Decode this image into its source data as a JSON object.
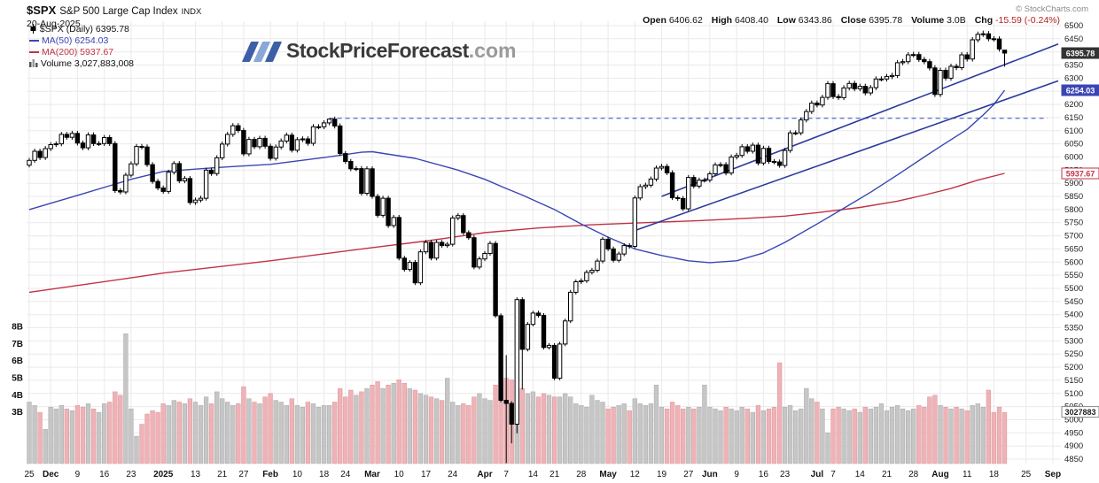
{
  "header": {
    "symbol": "$SPX",
    "name": "S&P 500 Large Cap Index",
    "exchange": "INDX",
    "date": "20-Aug-2025",
    "copyright": "© StockCharts.com"
  },
  "quote": {
    "fields": [
      {
        "label": "Open",
        "value": "6406.62"
      },
      {
        "label": "High",
        "value": "6408.40"
      },
      {
        "label": "Low",
        "value": "6343.86"
      },
      {
        "label": "Close",
        "value": "6395.78"
      },
      {
        "label": "Volume",
        "value": "3.0B"
      },
      {
        "label": "Chg",
        "value": "-15.59 (-0.24%)"
      }
    ]
  },
  "watermark": {
    "slashes": "///",
    "brand": "StockPriceForecast",
    "tld": ".com"
  },
  "legend": {
    "items": [
      {
        "label": "$SPX (Daily) 6395.78",
        "color": "#000000"
      },
      {
        "label": "MA(50) 6254.03",
        "color": "#3a46b4"
      },
      {
        "label": "MA(200) 5937.67",
        "color": "#c03344"
      },
      {
        "label": "Volume 3,027,883,008",
        "color": "#222222"
      }
    ]
  },
  "chart_data": {
    "type": "candlestick+volume",
    "symbol": "$SPX",
    "timeframe": "Daily",
    "ylim": [
      4850,
      6500
    ],
    "ytick_step": 50,
    "volume_ticks": [
      3,
      4,
      5,
      6,
      7,
      8
    ],
    "x_total_slots": 193,
    "first_open": 5969,
    "last_ohlc": {
      "open": 6406.62,
      "high": 6408.4,
      "low": 6343.86,
      "close": 6395.78
    },
    "dates": [
      "2024-11-25",
      "2024-11-26",
      "2024-11-27",
      "2024-11-29",
      "2024-12-02",
      "2024-12-03",
      "2024-12-04",
      "2024-12-05",
      "2024-12-06",
      "2024-12-09",
      "2024-12-10",
      "2024-12-11",
      "2024-12-12",
      "2024-12-13",
      "2024-12-16",
      "2024-12-17",
      "2024-12-18",
      "2024-12-19",
      "2024-12-20",
      "2024-12-23",
      "2024-12-24",
      "2024-12-26",
      "2024-12-27",
      "2024-12-30",
      "2024-12-31",
      "2025-01-02",
      "2025-01-03",
      "2025-01-06",
      "2025-01-07",
      "2025-01-08",
      "2025-01-10",
      "2025-01-13",
      "2025-01-14",
      "2025-01-15",
      "2025-01-16",
      "2025-01-17",
      "2025-01-21",
      "2025-01-22",
      "2025-01-23",
      "2025-01-24",
      "2025-01-27",
      "2025-01-28",
      "2025-01-29",
      "2025-01-30",
      "2025-01-31",
      "2025-02-03",
      "2025-02-04",
      "2025-02-05",
      "2025-02-06",
      "2025-02-07",
      "2025-02-10",
      "2025-02-11",
      "2025-02-12",
      "2025-02-13",
      "2025-02-14",
      "2025-02-18",
      "2025-02-19",
      "2025-02-20",
      "2025-02-21",
      "2025-02-24",
      "2025-02-25",
      "2025-02-26",
      "2025-02-27",
      "2025-02-28",
      "2025-03-03",
      "2025-03-04",
      "2025-03-05",
      "2025-03-06",
      "2025-03-07",
      "2025-03-10",
      "2025-03-11",
      "2025-03-12",
      "2025-03-13",
      "2025-03-14",
      "2025-03-17",
      "2025-03-18",
      "2025-03-19",
      "2025-03-20",
      "2025-03-21",
      "2025-03-24",
      "2025-03-25",
      "2025-03-26",
      "2025-03-27",
      "2025-03-28",
      "2025-03-31",
      "2025-04-01",
      "2025-04-02",
      "2025-04-03",
      "2025-04-04",
      "2025-04-07",
      "2025-04-08",
      "2025-04-09",
      "2025-04-10",
      "2025-04-11",
      "2025-04-14",
      "2025-04-15",
      "2025-04-16",
      "2025-04-17",
      "2025-04-21",
      "2025-04-22",
      "2025-04-23",
      "2025-04-24",
      "2025-04-25",
      "2025-04-28",
      "2025-04-29",
      "2025-04-30",
      "2025-05-01",
      "2025-05-02",
      "2025-05-05",
      "2025-05-06",
      "2025-05-07",
      "2025-05-08",
      "2025-05-09",
      "2025-05-12",
      "2025-05-13",
      "2025-05-14",
      "2025-05-15",
      "2025-05-16",
      "2025-05-19",
      "2025-05-20",
      "2025-05-21",
      "2025-05-22",
      "2025-05-23",
      "2025-05-27",
      "2025-05-28",
      "2025-05-29",
      "2025-05-30",
      "2025-06-02",
      "2025-06-03",
      "2025-06-04",
      "2025-06-05",
      "2025-06-06",
      "2025-06-09",
      "2025-06-10",
      "2025-06-11",
      "2025-06-12",
      "2025-06-13",
      "2025-06-16",
      "2025-06-17",
      "2025-06-18",
      "2025-06-20",
      "2025-06-23",
      "2025-06-24",
      "2025-06-25",
      "2025-06-26",
      "2025-06-27",
      "2025-06-30",
      "2025-07-01",
      "2025-07-02",
      "2025-07-03",
      "2025-07-07",
      "2025-07-08",
      "2025-07-09",
      "2025-07-10",
      "2025-07-11",
      "2025-07-14",
      "2025-07-15",
      "2025-07-16",
      "2025-07-17",
      "2025-07-18",
      "2025-07-21",
      "2025-07-22",
      "2025-07-23",
      "2025-07-24",
      "2025-07-25",
      "2025-07-28",
      "2025-07-29",
      "2025-07-30",
      "2025-07-31",
      "2025-08-01",
      "2025-08-04",
      "2025-08-05",
      "2025-08-06",
      "2025-08-07",
      "2025-08-08",
      "2025-08-11",
      "2025-08-12",
      "2025-08-13",
      "2025-08-14",
      "2025-08-15",
      "2025-08-18",
      "2025-08-19",
      "2025-08-20"
    ],
    "close": [
      5987,
      6022,
      5998,
      6032,
      6047,
      6050,
      6086,
      6075,
      6090,
      6053,
      6035,
      6084,
      6051,
      6051,
      6074,
      6051,
      5872,
      5867,
      5931,
      5974,
      6040,
      6038,
      5971,
      5907,
      5882,
      5869,
      5942,
      5975,
      5909,
      5918,
      5827,
      5836,
      5843,
      5950,
      5937,
      5997,
      6049,
      6086,
      6119,
      6101,
      6012,
      6067,
      6039,
      6071,
      6041,
      5995,
      6038,
      6061,
      6083,
      6026,
      6066,
      6069,
      6052,
      6115,
      6115,
      6130,
      6144,
      6118,
      6013,
      5983,
      5955,
      5956,
      5862,
      5955,
      5850,
      5778,
      5843,
      5739,
      5770,
      5615,
      5572,
      5599,
      5521,
      5639,
      5675,
      5615,
      5675,
      5663,
      5668,
      5768,
      5777,
      5712,
      5693,
      5581,
      5612,
      5633,
      5671,
      5396,
      5074,
      5062,
      4983,
      5457,
      5268,
      5363,
      5406,
      5397,
      5275,
      5283,
      5158,
      5288,
      5376,
      5485,
      5525,
      5529,
      5561,
      5569,
      5604,
      5687,
      5650,
      5607,
      5631,
      5663,
      5660,
      5844,
      5887,
      5893,
      5916,
      5958,
      5964,
      5940,
      5845,
      5842,
      5803,
      5922,
      5889,
      5912,
      5912,
      5936,
      5970,
      5971,
      5939,
      6000,
      6006,
      6039,
      6022,
      6045,
      5977,
      6033,
      5983,
      5981,
      5968,
      6025,
      6092,
      6092,
      6141,
      6173,
      6205,
      6198,
      6227,
      6279,
      6230,
      6226,
      6263,
      6280,
      6260,
      6269,
      6244,
      6264,
      6297,
      6297,
      6306,
      6310,
      6359,
      6363,
      6389,
      6390,
      6371,
      6363,
      6339,
      6238,
      6330,
      6300,
      6345,
      6340,
      6389,
      6373,
      6446,
      6467,
      6469,
      6450,
      6449,
      6411,
      6395.78
    ],
    "volume_b": [
      3.6,
      3.4,
      3.0,
      2.0,
      3.3,
      3.2,
      3.4,
      3.2,
      3.1,
      3.4,
      3.3,
      3.5,
      3.2,
      3.0,
      3.5,
      3.6,
      4.2,
      4.0,
      7.6,
      3.2,
      1.6,
      2.3,
      2.9,
      3.1,
      3.0,
      3.5,
      3.4,
      3.7,
      3.6,
      3.5,
      3.8,
      3.6,
      3.4,
      3.9,
      3.5,
      4.2,
      3.8,
      3.6,
      3.4,
      3.5,
      4.5,
      3.8,
      3.6,
      3.5,
      3.9,
      4.1,
      3.7,
      3.6,
      3.4,
      3.8,
      3.4,
      3.3,
      3.6,
      3.5,
      3.3,
      3.4,
      3.4,
      3.6,
      4.4,
      3.9,
      4.3,
      4.0,
      4.2,
      4.4,
      4.6,
      4.8,
      4.4,
      4.6,
      4.7,
      4.9,
      4.7,
      4.4,
      4.3,
      4.1,
      4.0,
      3.9,
      3.8,
      3.7,
      5.0,
      3.6,
      3.4,
      3.5,
      3.4,
      3.9,
      4.1,
      3.8,
      3.7,
      4.6,
      4.8,
      5.0,
      4.9,
      4.9,
      4.4,
      4.1,
      4.2,
      3.9,
      4.1,
      4.0,
      3.9,
      3.9,
      4.1,
      3.9,
      3.5,
      3.4,
      3.3,
      4.0,
      3.7,
      3.6,
      3.2,
      3.3,
      3.4,
      3.5,
      3.1,
      3.8,
      3.5,
      3.4,
      3.5,
      4.6,
      3.3,
      3.2,
      3.6,
      3.4,
      3.2,
      3.3,
      3.2,
      3.3,
      4.6,
      3.3,
      3.2,
      3.1,
      3.3,
      3.2,
      3.1,
      3.3,
      3.2,
      3.0,
      3.4,
      3.1,
      3.2,
      3.3,
      5.9,
      3.3,
      3.4,
      3.1,
      3.2,
      4.4,
      3.8,
      3.6,
      3.2,
      1.8,
      3.2,
      3.3,
      3.2,
      3.1,
      3.2,
      3.0,
      3.3,
      3.2,
      3.3,
      3.5,
      3.1,
      3.3,
      3.4,
      3.2,
      3.1,
      3.2,
      3.4,
      3.3,
      3.9,
      4.0,
      3.4,
      3.3,
      3.2,
      3.3,
      3.2,
      3.1,
      3.4,
      3.5,
      3.3,
      4.3,
      3.0,
      3.3,
      3.0
    ],
    "wick_highs": {
      "56": 6147,
      "89": 5246,
      "178": 6481
    },
    "wick_lows": {
      "89": 4835,
      "90": 4910,
      "91": 4948,
      "92": 5115
    },
    "ma50": {
      "label": "MA(50) 6254.03",
      "color": "#3a46b4",
      "points": [
        [
          0,
          5800
        ],
        [
          10,
          5860
        ],
        [
          19,
          5915
        ],
        [
          25,
          5945
        ],
        [
          35,
          5960
        ],
        [
          45,
          5972
        ],
        [
          55,
          5998
        ],
        [
          62,
          6018
        ],
        [
          64,
          6020
        ],
        [
          72,
          5995
        ],
        [
          80,
          5950
        ],
        [
          85,
          5915
        ],
        [
          89,
          5880
        ],
        [
          92,
          5855
        ],
        [
          98,
          5800
        ],
        [
          103,
          5745
        ],
        [
          108,
          5695
        ],
        [
          113,
          5650
        ],
        [
          118,
          5625
        ],
        [
          123,
          5605
        ],
        [
          127,
          5598
        ],
        [
          132,
          5605
        ],
        [
          137,
          5635
        ],
        [
          141,
          5675
        ],
        [
          147,
          5745
        ],
        [
          152,
          5805
        ],
        [
          157,
          5866
        ],
        [
          162,
          5932
        ],
        [
          167,
          6000
        ],
        [
          170,
          6040
        ],
        [
          175,
          6105
        ],
        [
          178,
          6160
        ],
        [
          180,
          6200
        ],
        [
          182,
          6254.03
        ]
      ]
    },
    "ma200": {
      "label": "MA(200) 5937.67",
      "color": "#c03344",
      "points": [
        [
          0,
          5485
        ],
        [
          19,
          5540
        ],
        [
          25,
          5558
        ],
        [
          45,
          5605
        ],
        [
          64,
          5655
        ],
        [
          74,
          5680
        ],
        [
          85,
          5712
        ],
        [
          95,
          5730
        ],
        [
          105,
          5742
        ],
        [
          115,
          5750
        ],
        [
          125,
          5758
        ],
        [
          135,
          5768
        ],
        [
          141,
          5775
        ],
        [
          147,
          5788
        ],
        [
          155,
          5808
        ],
        [
          162,
          5832
        ],
        [
          167,
          5855
        ],
        [
          172,
          5880
        ],
        [
          177,
          5912
        ],
        [
          182,
          5937.67
        ]
      ]
    },
    "trendlines": [
      {
        "name": "support-trendline",
        "color": "#2b3a9c",
        "points": [
          [
            113,
            5720
          ],
          [
            192,
            6290
          ]
        ]
      },
      {
        "name": "channel-trendline",
        "color": "#2b3a9c",
        "points": [
          [
            118,
            5850
          ],
          [
            192,
            6430
          ]
        ]
      }
    ],
    "resistance": {
      "style": "dashed",
      "price": 6147,
      "from_index": 56,
      "to_index": 190
    },
    "price_boxes": [
      {
        "value": 6395.78,
        "label": "6395.78",
        "bg": "#333333",
        "fg": "#ffffff",
        "border": "#333333"
      },
      {
        "value": 6254.03,
        "label": "6254.03",
        "bg": "#3a46b4",
        "fg": "#ffffff",
        "border": "#3a46b4"
      },
      {
        "value": 5937.67,
        "label": "5937.67",
        "bg": "#ffffff",
        "fg": "#c03344",
        "border": "#c03344"
      }
    ],
    "volume_box": {
      "value_b": 3.027883,
      "label": "3027883",
      "bg": "#ffffff",
      "fg": "#222222",
      "border": "#888888"
    },
    "colors": {
      "candle_up": "#ffffff",
      "candle_down": "#000000",
      "candle_stroke": "#000000",
      "vol_up": "#c6c6c6",
      "vol_up_stroke": "#a9a9a9",
      "vol_down": "#f0b2b6",
      "vol_down_stroke": "#d4969a",
      "dashed": "#3050c8"
    },
    "x_ticks": [
      {
        "label": "25",
        "index": 0
      },
      {
        "label": "Dec",
        "index": 4,
        "bold": true
      },
      {
        "label": "9",
        "index": 9
      },
      {
        "label": "16",
        "index": 14
      },
      {
        "label": "23",
        "index": 19
      },
      {
        "label": "2025",
        "index": 25,
        "bold": true
      },
      {
        "label": "13",
        "index": 31
      },
      {
        "label": "21",
        "index": 36
      },
      {
        "label": "27",
        "index": 40
      },
      {
        "label": "Feb",
        "index": 45,
        "bold": true
      },
      {
        "label": "10",
        "index": 50
      },
      {
        "label": "18",
        "index": 55
      },
      {
        "label": "24",
        "index": 59
      },
      {
        "label": "Mar",
        "index": 64,
        "bold": true
      },
      {
        "label": "10",
        "index": 69
      },
      {
        "label": "17",
        "index": 74
      },
      {
        "label": "24",
        "index": 79
      },
      {
        "label": "Apr",
        "index": 85,
        "bold": true
      },
      {
        "label": "7",
        "index": 89
      },
      {
        "label": "14",
        "index": 94
      },
      {
        "label": "21",
        "index": 98
      },
      {
        "label": "28",
        "index": 103
      },
      {
        "label": "May",
        "index": 108,
        "bold": true
      },
      {
        "label": "12",
        "index": 113
      },
      {
        "label": "19",
        "index": 118
      },
      {
        "label": "27",
        "index": 123
      },
      {
        "label": "Jun",
        "index": 127,
        "bold": true
      },
      {
        "label": "9",
        "index": 132
      },
      {
        "label": "16",
        "index": 137
      },
      {
        "label": "23",
        "index": 141
      },
      {
        "label": "Jul",
        "index": 147,
        "bold": true
      },
      {
        "label": "7",
        "index": 150
      },
      {
        "label": "14",
        "index": 155
      },
      {
        "label": "21",
        "index": 160
      },
      {
        "label": "28",
        "index": 165
      },
      {
        "label": "Aug",
        "index": 170,
        "bold": true
      },
      {
        "label": "11",
        "index": 175
      },
      {
        "label": "18",
        "index": 180
      },
      {
        "label": "25",
        "index": 186
      },
      {
        "label": "Sep",
        "index": 191,
        "bold": true
      }
    ]
  }
}
